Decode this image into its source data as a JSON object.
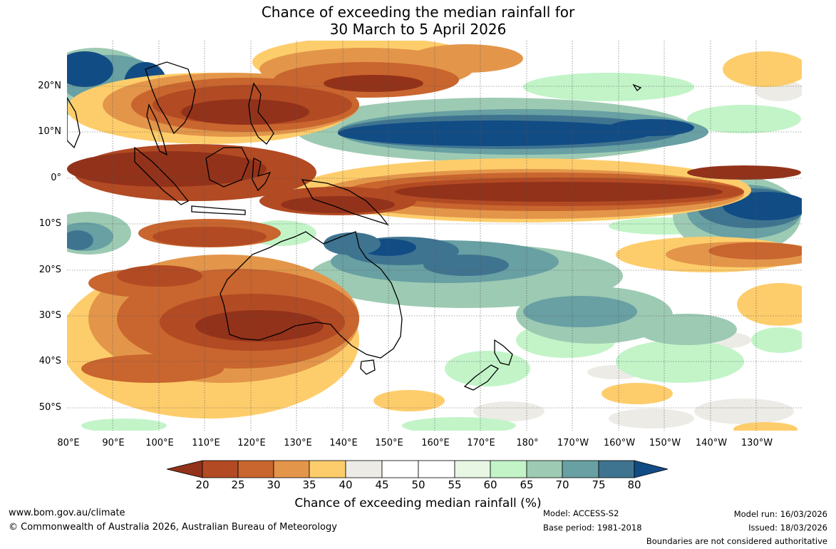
{
  "title": {
    "line1": "Chance of exceeding the median rainfall for",
    "line2": "30 March to 5 April 2026"
  },
  "lat_labels": [
    "20°N",
    "10°N",
    "0°",
    "10°S",
    "20°S",
    "30°S",
    "40°S",
    "50°S"
  ],
  "lon_labels": [
    "80°E",
    "90°E",
    "100°E",
    "110°E",
    "120°E",
    "130°E",
    "140°E",
    "150°E",
    "160°E",
    "170°E",
    "180°",
    "170°W",
    "160°W",
    "150°W",
    "140°W",
    "130°W"
  ],
  "colorbar": {
    "ticks": [
      "20",
      "25",
      "30",
      "35",
      "40",
      "45",
      "50",
      "55",
      "60",
      "65",
      "70",
      "75",
      "80"
    ],
    "label": "Chance of exceeding median rainfall (%)",
    "colors": {
      "below_20": "#93321a",
      "c20_25": "#b24a23",
      "c25_30": "#c9652e",
      "c30_35": "#e3964a",
      "c35_40": "#fecd6b",
      "c40_45": "#ecebe6",
      "c45_55": "#ffffff",
      "c55_60": "#e7f7e4",
      "c60_65": "#c2f4c8",
      "c65_70": "#9dcab3",
      "c70_75": "#68a0a3",
      "c75_80": "#3f7490",
      "above_80": "#124c85"
    }
  },
  "footer": {
    "url": "www.bom.gov.au/climate",
    "copyright": "© Commonwealth of Australia 2026, Australian Bureau of Meteorology",
    "model": "Model: ACCESS-S2",
    "base_period": "Base period: 1981-2018",
    "model_run": "Model run: 16/03/2026",
    "issued": "Issued: 18/03/2026",
    "disclaimer": "Boundaries are not considered authoritative"
  }
}
